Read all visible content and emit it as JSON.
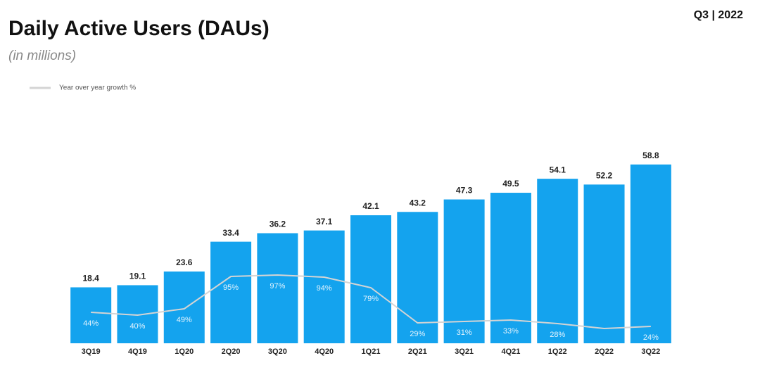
{
  "chart_data": {
    "type": "bar",
    "title": "Daily Active Users (DAUs)",
    "subtitle": "(in millions)",
    "period": "Q3 | 2022",
    "categories": [
      "3Q19",
      "4Q19",
      "1Q20",
      "2Q20",
      "3Q20",
      "4Q20",
      "1Q21",
      "2Q21",
      "3Q21",
      "4Q21",
      "1Q22",
      "2Q22",
      "3Q22"
    ],
    "series": [
      {
        "name": "DAUs",
        "type": "bar",
        "color": "#14a3ee",
        "values": [
          18.4,
          19.1,
          23.6,
          33.4,
          36.2,
          37.1,
          42.1,
          43.2,
          47.3,
          49.5,
          54.1,
          52.2,
          58.8
        ]
      },
      {
        "name": "Year over year growth %",
        "type": "line",
        "axis": "y2",
        "color": "#d4d4d4",
        "values": [
          44,
          40,
          49,
          95,
          97,
          94,
          79,
          29,
          31,
          33,
          28,
          21,
          24
        ],
        "value_labels": [
          "44%",
          "40%",
          "49%",
          "95%",
          "97%",
          "94%",
          "79%",
          "29%",
          "31%",
          "33%",
          "28%",
          null,
          "24%"
        ]
      }
    ],
    "ylim": [
      0,
      62
    ],
    "y2lim": [
      0,
      268
    ],
    "legend": "top-left"
  }
}
